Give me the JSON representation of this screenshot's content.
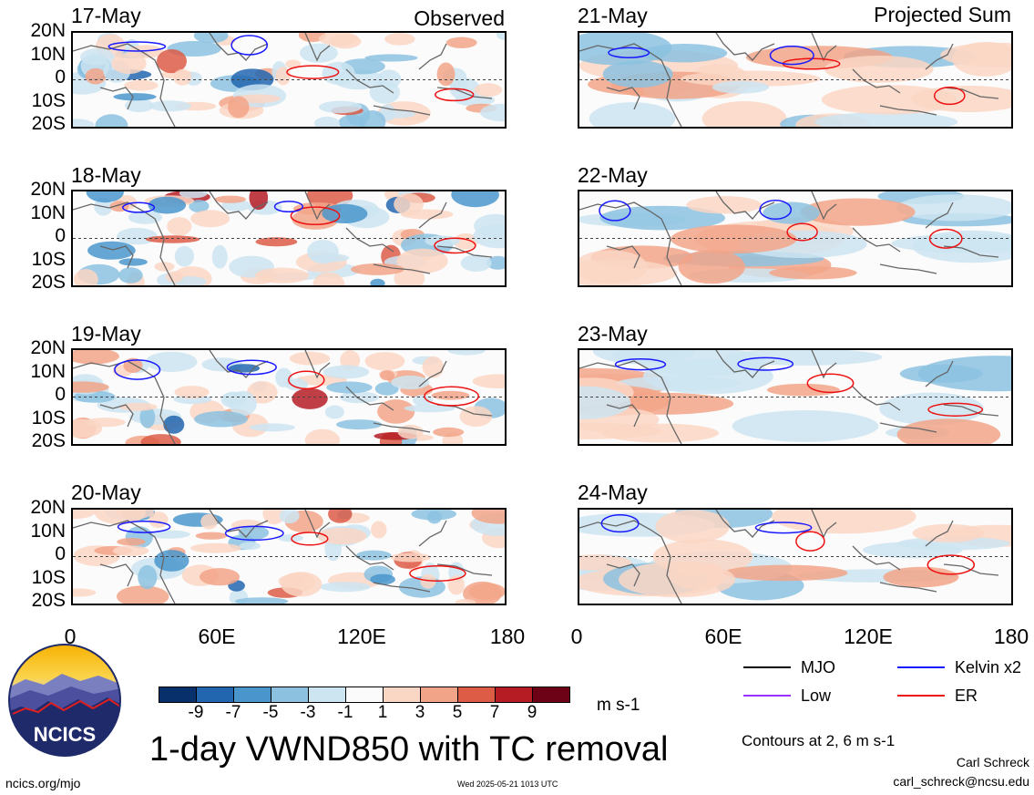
{
  "columns": {
    "left_title": "Observed",
    "right_title": "Projected Sum"
  },
  "panels_left": [
    "17-May",
    "18-May",
    "19-May",
    "20-May"
  ],
  "panels_right": [
    "21-May",
    "22-May",
    "23-May",
    "24-May"
  ],
  "lat_labels": [
    "20N",
    "10N",
    "0",
    "10S",
    "20S"
  ],
  "lon_labels": [
    "0",
    "60E",
    "120E",
    "180"
  ],
  "colorbar": {
    "ticks": [
      "-9",
      "-7",
      "-5",
      "-3",
      "-1",
      "1",
      "3",
      "5",
      "7",
      "9"
    ],
    "colors": [
      "#08306b",
      "#2266b0",
      "#4a96cc",
      "#8cc2e0",
      "#cde4f1",
      "#fbfbfb",
      "#fad6c4",
      "#f2a488",
      "#dc5c46",
      "#b51c24",
      "#6d0216"
    ],
    "units": "m s-1"
  },
  "title": "1-day VWND850 with TC removal",
  "legend": {
    "items": [
      {
        "label": "MJO",
        "color": "#000000"
      },
      {
        "label": "Kelvin x2",
        "color": "#1a1aff"
      },
      {
        "label": "Low",
        "color": "#9b30ff"
      },
      {
        "label": "ER",
        "color": "#ee1111"
      }
    ],
    "contours_note": "Contours at 2, 6 m s-1"
  },
  "credits": {
    "author": "Carl Schreck",
    "email": "carl_schreck@ncsu.edu",
    "site": "ncics.org/mjo",
    "timestamp": "Wed 2025-05-21 1013 UTC"
  },
  "logo_text": "NCICS"
}
